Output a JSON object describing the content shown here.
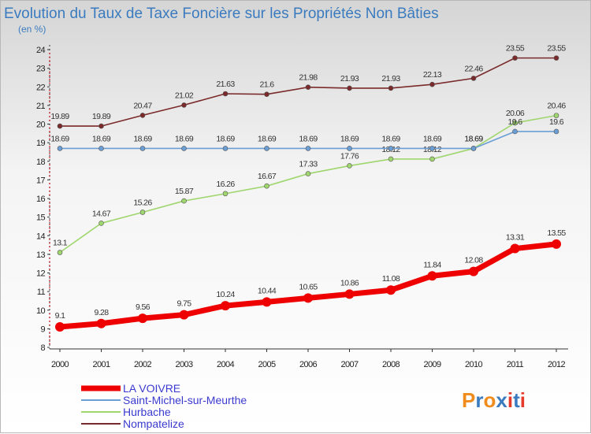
{
  "chart_data": {
    "type": "line",
    "title": "Evolution du Taux de Taxe Foncière sur les Propriétés Non Bâties",
    "subtitle": "(en %)",
    "x": [
      "2000",
      "2001",
      "2002",
      "2003",
      "2004",
      "2005",
      "2006",
      "2007",
      "2008",
      "2009",
      "2010",
      "2011",
      "2012"
    ],
    "ylim": [
      8,
      24
    ],
    "yticks": [
      8,
      9,
      10,
      11,
      12,
      13,
      14,
      15,
      16,
      17,
      18,
      19,
      20,
      21,
      22,
      23,
      24
    ],
    "grid": false,
    "legend_position": "bottom-left",
    "series": [
      {
        "name": "LA VOIVRE",
        "color": "#ee0000",
        "values": [
          9.1,
          9.28,
          9.56,
          9.75,
          10.24,
          10.44,
          10.65,
          10.86,
          11.08,
          11.84,
          12.08,
          13.31,
          13.55
        ],
        "labels": [
          "9.1",
          "9.28",
          "9.56",
          "9.75",
          "10.24",
          "10.44",
          "10.65",
          "10.86",
          "11.08",
          "11.84",
          "12.08",
          "13.31",
          "13.55"
        ]
      },
      {
        "name": "Saint-Michel-sur-Meurthe",
        "color": "#6a9ed4",
        "values": [
          18.69,
          18.69,
          18.69,
          18.69,
          18.69,
          18.69,
          18.69,
          18.69,
          18.69,
          18.69,
          18.69,
          19.6,
          19.6
        ],
        "labels": [
          "18.69",
          "18.69",
          "18.69",
          "18.69",
          "18.69",
          "18.69",
          "18.69",
          "18.69",
          "18.69",
          "18.69",
          "18.69",
          "19.6",
          "19.6"
        ]
      },
      {
        "name": "Hurbache",
        "color": "#9fd66e",
        "values": [
          13.1,
          14.67,
          15.26,
          15.87,
          16.26,
          16.67,
          17.33,
          17.76,
          18.12,
          18.12,
          18.69,
          20.06,
          20.46
        ],
        "labels": [
          "13.1",
          "14.67",
          "15.26",
          "15.87",
          "16.26",
          "16.67",
          "17.33",
          "17.76",
          "18.12",
          "18.12",
          "18.69",
          "20.06",
          "20.46"
        ]
      },
      {
        "name": "Nompatelize",
        "color": "#7a2a2a",
        "values": [
          19.89,
          19.89,
          20.47,
          21.02,
          21.63,
          21.6,
          21.98,
          21.93,
          21.93,
          22.13,
          22.46,
          23.55,
          23.55
        ],
        "labels": [
          "19.89",
          "19.89",
          "20.47",
          "21.02",
          "21.63",
          "21.6",
          "21.98",
          "21.93",
          "21.93",
          "22.13",
          "22.46",
          "23.55",
          "23.55"
        ]
      }
    ]
  },
  "logo": {
    "text": "Proxiti",
    "colors": [
      "#f08c1c",
      "#3a7bbf",
      "#f08c1c",
      "#3a7bbf",
      "#e53a2a",
      "#3a7bbf",
      "#e53a2a"
    ]
  }
}
